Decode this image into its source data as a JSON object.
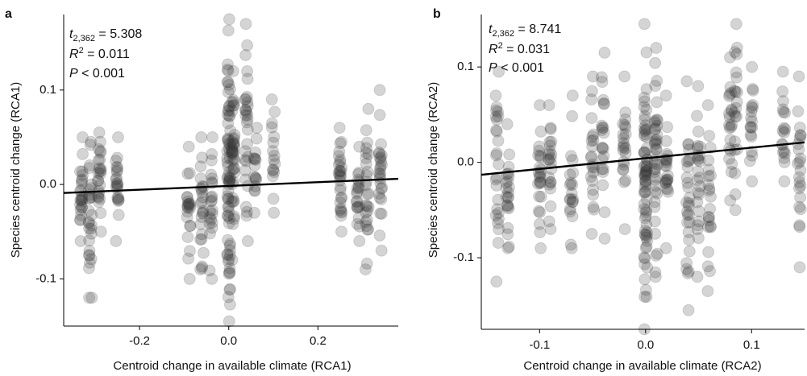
{
  "chart_data": [
    {
      "type": "scatter",
      "panel_label": "a",
      "xlabel": "Centroid change in available climate (RCA1)",
      "ylabel": "Species centroid change  (RCA1)",
      "xlim": [
        -0.37,
        0.38
      ],
      "ylim": [
        -0.15,
        0.18
      ],
      "xticks": [
        -0.2,
        0.0,
        0.2
      ],
      "xtick_labels": [
        "-0.2",
        "0.0",
        "0.2"
      ],
      "yticks": [
        -0.1,
        0.0,
        0.1
      ],
      "ytick_labels": [
        "-0.1",
        "0.0",
        "0.1"
      ],
      "grid": false,
      "stats": {
        "t_sub": "2,362",
        "t_value": "5.308",
        "r2_value": "0.011",
        "p_value": "0.001"
      },
      "regression_line": {
        "x": [
          -0.37,
          0.38
        ],
        "y": [
          -0.009,
          0.006
        ]
      },
      "point_columns": [
        {
          "x": -0.33,
          "ymin": -0.06,
          "ymax": 0.05,
          "n": 24
        },
        {
          "x": -0.31,
          "ymin": -0.12,
          "ymax": 0.045,
          "n": 28
        },
        {
          "x": -0.29,
          "ymin": -0.05,
          "ymax": 0.055,
          "n": 24
        },
        {
          "x": -0.25,
          "ymin": -0.06,
          "ymax": 0.05,
          "n": 22
        },
        {
          "x": -0.09,
          "ymin": -0.1,
          "ymax": 0.04,
          "n": 22
        },
        {
          "x": -0.06,
          "ymin": -0.09,
          "ymax": 0.05,
          "n": 24
        },
        {
          "x": -0.04,
          "ymin": -0.1,
          "ymax": 0.05,
          "n": 22
        },
        {
          "x": 0.0,
          "ymin": -0.145,
          "ymax": 0.175,
          "n": 70
        },
        {
          "x": 0.01,
          "ymin": -0.08,
          "ymax": 0.12,
          "n": 40
        },
        {
          "x": 0.04,
          "ymin": -0.06,
          "ymax": 0.17,
          "n": 30
        },
        {
          "x": 0.06,
          "ymin": -0.03,
          "ymax": 0.06,
          "n": 16
        },
        {
          "x": 0.1,
          "ymin": -0.03,
          "ymax": 0.09,
          "n": 16
        },
        {
          "x": 0.25,
          "ymin": -0.05,
          "ymax": 0.06,
          "n": 28
        },
        {
          "x": 0.29,
          "ymin": -0.06,
          "ymax": 0.04,
          "n": 20
        },
        {
          "x": 0.31,
          "ymin": -0.09,
          "ymax": 0.08,
          "n": 26
        },
        {
          "x": 0.34,
          "ymin": -0.07,
          "ymax": 0.1,
          "n": 26
        }
      ]
    },
    {
      "type": "scatter",
      "panel_label": "b",
      "xlabel": "Centroid change in available climate (RCA2)",
      "ylabel": "Species centroid change  (RCA2)",
      "xlim": [
        -0.155,
        0.15
      ],
      "ylim": [
        -0.175,
        0.155
      ],
      "xticks": [
        -0.1,
        0.0,
        0.1
      ],
      "xtick_labels": [
        "-0.1",
        "0.0",
        "0.1"
      ],
      "yticks": [
        -0.1,
        0.0,
        0.1
      ],
      "ytick_labels": [
        "-0.1",
        "0.0",
        "0.1"
      ],
      "grid": false,
      "stats": {
        "t_sub": "2,362",
        "t_value": "8.741",
        "r2_value": "0.031",
        "p_value": "0.001"
      },
      "regression_line": {
        "x": [
          -0.155,
          0.15
        ],
        "y": [
          -0.013,
          0.021
        ]
      },
      "point_columns": [
        {
          "x": -0.14,
          "ymin": -0.125,
          "ymax": 0.095,
          "n": 26
        },
        {
          "x": -0.13,
          "ymin": -0.09,
          "ymax": 0.04,
          "n": 22
        },
        {
          "x": -0.1,
          "ymin": -0.09,
          "ymax": 0.06,
          "n": 24
        },
        {
          "x": -0.09,
          "ymin": -0.07,
          "ymax": 0.06,
          "n": 22
        },
        {
          "x": -0.07,
          "ymin": -0.09,
          "ymax": 0.07,
          "n": 20
        },
        {
          "x": -0.05,
          "ymin": -0.075,
          "ymax": 0.09,
          "n": 22
        },
        {
          "x": -0.04,
          "ymin": -0.08,
          "ymax": 0.115,
          "n": 22
        },
        {
          "x": -0.02,
          "ymin": -0.07,
          "ymax": 0.09,
          "n": 22
        },
        {
          "x": 0.0,
          "ymin": -0.175,
          "ymax": 0.145,
          "n": 70
        },
        {
          "x": 0.01,
          "ymin": -0.12,
          "ymax": 0.12,
          "n": 40
        },
        {
          "x": 0.02,
          "ymin": -0.09,
          "ymax": 0.07,
          "n": 22
        },
        {
          "x": 0.04,
          "ymin": -0.155,
          "ymax": 0.085,
          "n": 28
        },
        {
          "x": 0.05,
          "ymin": -0.12,
          "ymax": 0.08,
          "n": 24
        },
        {
          "x": 0.06,
          "ymin": -0.135,
          "ymax": 0.06,
          "n": 22
        },
        {
          "x": 0.08,
          "ymin": -0.04,
          "ymax": 0.11,
          "n": 20
        },
        {
          "x": 0.085,
          "ymin": -0.05,
          "ymax": 0.145,
          "n": 20
        },
        {
          "x": 0.1,
          "ymin": -0.02,
          "ymax": 0.1,
          "n": 18
        },
        {
          "x": 0.13,
          "ymin": -0.02,
          "ymax": 0.095,
          "n": 18
        },
        {
          "x": 0.145,
          "ymin": -0.11,
          "ymax": 0.09,
          "n": 22
        }
      ]
    }
  ]
}
